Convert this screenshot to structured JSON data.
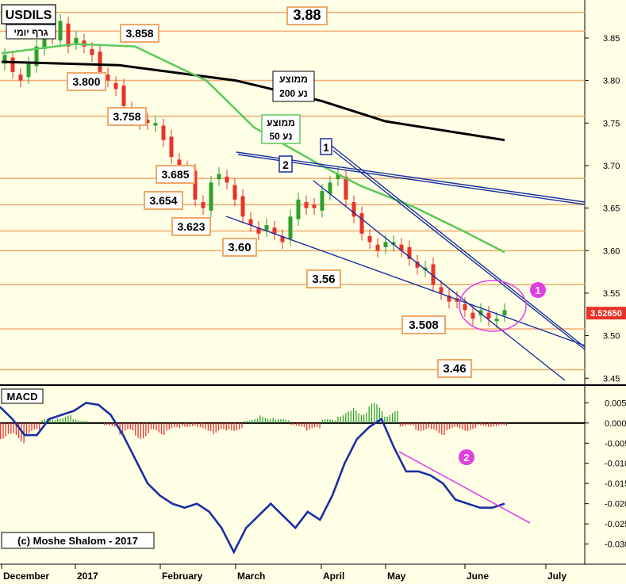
{
  "chart_data": [
    {
      "type": "candlestick",
      "title": "USDILS",
      "subtitle": "גרף יומי",
      "copyright": "(c) Moshe Shalom - 2017",
      "ylim": [
        3.44,
        3.89
      ],
      "yticks": [
        3.45,
        3.5,
        3.55,
        3.6,
        3.65,
        3.7,
        3.75,
        3.8,
        3.85
      ],
      "ytick_labels": [
        "3.45",
        "3.50",
        "3.55",
        "3.60",
        "3.65",
        "3.70",
        "3.75",
        "3.80",
        "3.85"
      ],
      "last_price": 3.5265,
      "last_price_label": "3.52650",
      "x_labels": [
        "December",
        "2017",
        "February",
        "March",
        "April",
        "May",
        "June",
        "July"
      ],
      "levels": [
        {
          "value": 3.88,
          "label": "3.88"
        },
        {
          "value": 3.858,
          "label": "3.858"
        },
        {
          "value": 3.8,
          "label": "3.800"
        },
        {
          "value": 3.758,
          "label": "3.758"
        },
        {
          "value": 3.685,
          "label": "3.685"
        },
        {
          "value": 3.654,
          "label": "3.654"
        },
        {
          "value": 3.623,
          "label": "3.623"
        },
        {
          "value": 3.6,
          "label": "3.60"
        },
        {
          "value": 3.56,
          "label": "3.56"
        },
        {
          "value": 3.508,
          "label": "3.508"
        },
        {
          "value": 3.46,
          "label": "3.46"
        }
      ],
      "moving_averages": [
        {
          "name": "ממוצע נע 200",
          "label_line1": "ממוצע",
          "label_line2": "נע 200",
          "color": "#000000",
          "x": [
            "Dec 1",
            "Jan 15",
            "Mar 1",
            "Apr 1",
            "May 1",
            "Jun 20"
          ],
          "y": [
            3.822,
            3.818,
            3.8,
            3.776,
            3.752,
            3.73
          ]
        },
        {
          "name": "ממוצע נע 50",
          "label_line1": "ממוצע",
          "label_line2": "נע 50",
          "color": "#5cc85c",
          "x": [
            "Dec 1",
            "Jan 1",
            "Jan 20",
            "Feb 15",
            "Mar 5",
            "Apr 1",
            "Apr 20",
            "May 10",
            "Jun 1",
            "Jun 20"
          ],
          "y": [
            3.832,
            3.843,
            3.84,
            3.8,
            3.745,
            3.7,
            3.676,
            3.652,
            3.622,
            3.598
          ]
        }
      ],
      "trendlines_labels": [
        "1",
        "2"
      ],
      "annotation_marker": "1",
      "candles_close": [
        3.83,
        3.81,
        3.8,
        3.82,
        3.84,
        3.86,
        3.85,
        3.87,
        3.84,
        3.85,
        3.84,
        3.83,
        3.81,
        3.8,
        3.79,
        3.77,
        3.76,
        3.75,
        3.75,
        3.75,
        3.73,
        3.71,
        3.7,
        3.69,
        3.66,
        3.65,
        3.68,
        3.69,
        3.68,
        3.66,
        3.64,
        3.63,
        3.62,
        3.63,
        3.62,
        3.61,
        3.64,
        3.66,
        3.65,
        3.65,
        3.67,
        3.68,
        3.69,
        3.66,
        3.64,
        3.62,
        3.61,
        3.6,
        3.61,
        3.61,
        3.6,
        3.59,
        3.58,
        3.58,
        3.56,
        3.55,
        3.54,
        3.54,
        3.53,
        3.52,
        3.53,
        3.52,
        3.52,
        3.53
      ]
    },
    {
      "type": "macd",
      "title": "MACD",
      "ylim": [
        -0.035,
        0.009
      ],
      "yticks": [
        0.005,
        0.0,
        -0.005,
        -0.01,
        -0.015,
        -0.02,
        -0.025,
        -0.03
      ],
      "ytick_labels": [
        "0.005",
        "0.000",
        "-0.005",
        "-0.010",
        "-0.015",
        "-0.020",
        "-0.025",
        "-0.030"
      ],
      "annotation_marker": "2",
      "macd_line": [
        0.004,
        0.001,
        -0.003,
        -0.003,
        0.001,
        0.002,
        0.003,
        0.005,
        0.0045,
        0.002,
        -0.003,
        -0.009,
        -0.015,
        -0.018,
        -0.02,
        -0.021,
        -0.02,
        -0.022,
        -0.026,
        -0.032,
        -0.026,
        -0.023,
        -0.02,
        -0.023,
        -0.026,
        -0.022,
        -0.024,
        -0.018,
        -0.01,
        -0.004,
        -0.001,
        0.001,
        -0.006,
        -0.012,
        -0.012,
        -0.013,
        -0.015,
        -0.019,
        -0.02,
        -0.021,
        -0.021,
        -0.02
      ],
      "histogram": [
        -0.004,
        -0.005,
        -0.003,
        0.001,
        0.002,
        0.001,
        0.0,
        -0.001,
        -0.003,
        -0.004,
        -0.003,
        -0.002,
        -0.001,
        -0.002,
        -0.003,
        -0.002,
        0.001,
        0.002,
        0.001,
        -0.001,
        -0.002,
        0.001,
        0.003,
        0.004,
        0.005,
        0.003,
        -0.001,
        -0.002,
        -0.003,
        -0.002,
        -0.002,
        -0.001,
        -0.001
      ]
    }
  ]
}
